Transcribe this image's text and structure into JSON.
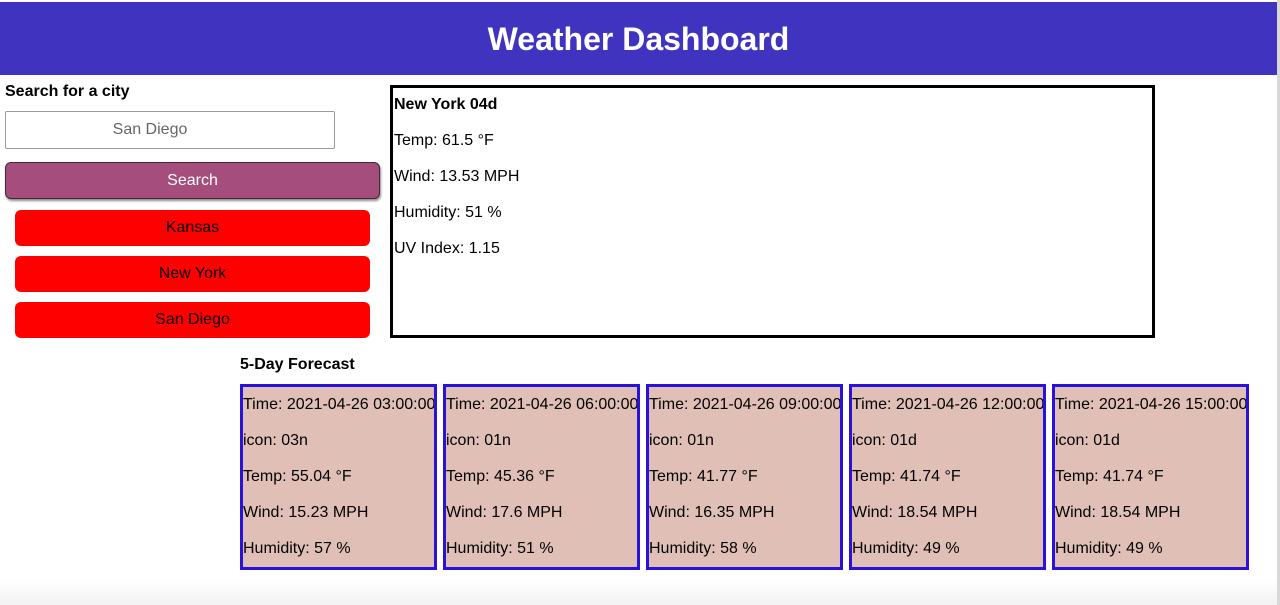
{
  "header": {
    "title": "Weather Dashboard"
  },
  "search": {
    "label": "Search for a city",
    "placeholder": "San Diego",
    "button_label": "Search"
  },
  "history": [
    "Kansas",
    "New York",
    "San Diego"
  ],
  "current": {
    "city_line": "New York 04d",
    "temp": "Temp: 61.5 °F",
    "wind": "Wind: 13.53 MPH",
    "humidity": "Humidity: 51 %",
    "uv": "UV Index: 1.15"
  },
  "forecast": {
    "title": "5-Day Forecast",
    "days": [
      {
        "time": "Time: 2021-04-26 03:00:00",
        "icon": "icon: 03n",
        "temp": "Temp: 55.04 °F",
        "wind": "Wind: 15.23 MPH",
        "humidity": "Humidity: 57 %"
      },
      {
        "time": "Time: 2021-04-26 06:00:00",
        "icon": "icon: 01n",
        "temp": "Temp: 45.36 °F",
        "wind": "Wind: 17.6 MPH",
        "humidity": "Humidity: 51 %"
      },
      {
        "time": "Time: 2021-04-26 09:00:00",
        "icon": "icon: 01n",
        "temp": "Temp: 41.77 °F",
        "wind": "Wind: 16.35 MPH",
        "humidity": "Humidity: 58 %"
      },
      {
        "time": "Time: 2021-04-26 12:00:00",
        "icon": "icon: 01d",
        "temp": "Temp: 41.74 °F",
        "wind": "Wind: 18.54 MPH",
        "humidity": "Humidity: 49 %"
      },
      {
        "time": "Time: 2021-04-26 15:00:00",
        "icon": "icon: 01d",
        "temp": "Temp: 41.74 °F",
        "wind": "Wind: 18.54 MPH",
        "humidity": "Humidity: 49 %"
      }
    ]
  }
}
